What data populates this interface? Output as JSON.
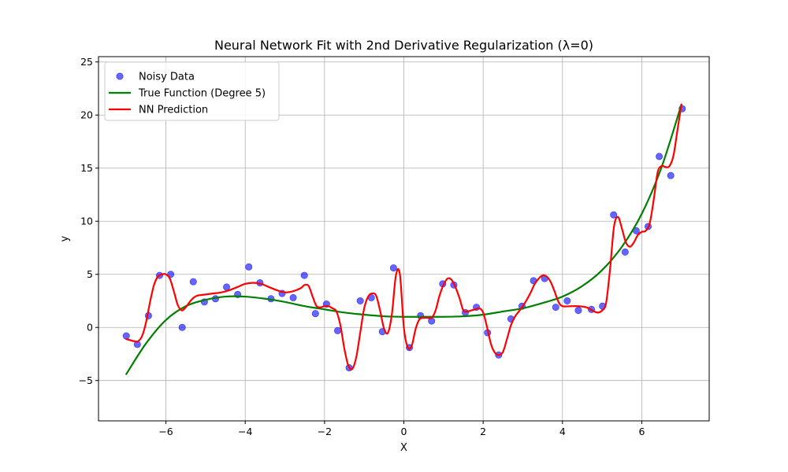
{
  "chart_data": {
    "type": "scatter",
    "title": "Neural Network Fit with 2nd Derivative Regularization (λ=0)",
    "xlabel": "X",
    "ylabel": "y",
    "xlim": [
      -7.7,
      7.7
    ],
    "ylim": [
      -8.8,
      25.5
    ],
    "xticks": [
      -6,
      -4,
      -2,
      0,
      2,
      4,
      6
    ],
    "yticks": [
      -5,
      0,
      5,
      10,
      15,
      20,
      25
    ],
    "grid": true,
    "legend_position": "top-left",
    "series": [
      {
        "name": "Noisy Data",
        "kind": "scatter",
        "color": "#0000ff",
        "x": [
          -7.0,
          -6.72,
          -6.44,
          -6.16,
          -5.88,
          -5.59,
          -5.31,
          -5.03,
          -4.75,
          -4.47,
          -4.19,
          -3.91,
          -3.63,
          -3.35,
          -3.07,
          -2.79,
          -2.51,
          -2.23,
          -1.95,
          -1.67,
          -1.38,
          -1.1,
          -0.82,
          -0.54,
          -0.26,
          0.14,
          0.42,
          0.7,
          0.98,
          1.26,
          1.55,
          1.83,
          2.11,
          2.39,
          2.7,
          2.98,
          3.27,
          3.55,
          3.83,
          4.12,
          4.4,
          4.73,
          5.01,
          5.29,
          5.58,
          5.86,
          6.16,
          6.44,
          6.73,
          7.02
        ],
        "y": [
          -0.8,
          -1.6,
          1.1,
          4.9,
          5.0,
          0.0,
          4.3,
          2.4,
          2.7,
          3.8,
          3.1,
          5.7,
          4.2,
          2.7,
          3.2,
          2.8,
          4.9,
          1.3,
          2.2,
          -0.3,
          -3.8,
          2.5,
          2.8,
          -0.4,
          5.6,
          -1.9,
          1.1,
          0.6,
          4.1,
          4.0,
          1.4,
          1.9,
          -0.5,
          -2.6,
          0.8,
          2.0,
          4.4,
          4.6,
          1.9,
          2.5,
          1.6,
          1.7,
          2.0,
          10.6,
          7.1,
          9.1,
          9.5,
          16.1,
          14.3,
          20.6
        ]
      },
      {
        "name": "True Function (Degree 5)",
        "kind": "line",
        "color": "#008000",
        "x": [
          -7.0,
          -6.5,
          -6.0,
          -5.5,
          -5.0,
          -4.5,
          -4.0,
          -3.5,
          -3.0,
          -2.5,
          -2.0,
          -1.5,
          -1.0,
          -0.5,
          0.0,
          0.5,
          1.0,
          1.5,
          2.0,
          2.5,
          3.0,
          3.5,
          4.0,
          4.5,
          5.0,
          5.5,
          6.0,
          6.5,
          7.0
        ],
        "y": [
          -4.4,
          -1.5,
          0.7,
          2.0,
          2.6,
          2.9,
          2.9,
          2.7,
          2.4,
          2.0,
          1.7,
          1.4,
          1.2,
          1.05,
          1.0,
          1.0,
          1.0,
          1.05,
          1.2,
          1.5,
          1.8,
          2.3,
          2.9,
          3.9,
          5.4,
          7.6,
          10.7,
          15.1,
          21.0
        ]
      },
      {
        "name": "NN Prediction",
        "kind": "line",
        "color": "#ff0000",
        "x": [
          -7.0,
          -6.9,
          -6.8,
          -6.7,
          -6.6,
          -6.5,
          -6.4,
          -6.3,
          -6.2,
          -6.1,
          -6.0,
          -5.9,
          -5.8,
          -5.7,
          -5.6,
          -5.5,
          -5.4,
          -5.3,
          -5.2,
          -5.0,
          -4.8,
          -4.6,
          -4.4,
          -4.2,
          -4.0,
          -3.8,
          -3.6,
          -3.4,
          -3.2,
          -3.0,
          -2.8,
          -2.6,
          -2.5,
          -2.4,
          -2.3,
          -2.2,
          -2.1,
          -2.0,
          -1.9,
          -1.8,
          -1.7,
          -1.6,
          -1.5,
          -1.4,
          -1.3,
          -1.2,
          -1.1,
          -1.0,
          -0.9,
          -0.8,
          -0.7,
          -0.6,
          -0.5,
          -0.4,
          -0.3,
          -0.2,
          -0.1,
          0.0,
          0.1,
          0.2,
          0.3,
          0.4,
          0.5,
          0.6,
          0.7,
          0.8,
          0.9,
          1.0,
          1.1,
          1.2,
          1.3,
          1.4,
          1.5,
          1.6,
          1.7,
          1.8,
          1.9,
          2.0,
          2.1,
          2.2,
          2.3,
          2.4,
          2.5,
          2.6,
          2.7,
          2.8,
          2.9,
          3.0,
          3.1,
          3.2,
          3.3,
          3.4,
          3.5,
          3.6,
          3.7,
          3.8,
          3.9,
          4.0,
          4.2,
          4.4,
          4.6,
          4.7,
          4.8,
          4.9,
          5.0,
          5.1,
          5.2,
          5.3,
          5.4,
          5.5,
          5.6,
          5.7,
          5.8,
          5.9,
          6.0,
          6.1,
          6.2,
          6.3,
          6.4,
          6.5,
          6.6,
          6.7,
          6.8,
          6.9,
          7.0
        ],
        "y": [
          -1.1,
          -1.2,
          -1.3,
          -1.3,
          -0.8,
          0.5,
          2.4,
          4.0,
          4.8,
          5.0,
          5.0,
          4.6,
          3.4,
          2.1,
          1.6,
          1.9,
          2.4,
          2.8,
          3.0,
          3.1,
          3.2,
          3.3,
          3.5,
          3.8,
          4.1,
          4.2,
          4.1,
          3.8,
          3.5,
          3.3,
          3.4,
          3.7,
          4.0,
          3.9,
          2.9,
          2.0,
          1.9,
          2.0,
          2.0,
          1.8,
          1.5,
          0.2,
          -2.0,
          -3.6,
          -3.9,
          -2.8,
          -0.5,
          1.8,
          2.9,
          3.2,
          3.0,
          1.6,
          -0.1,
          -0.5,
          1.3,
          4.9,
          5.0,
          0.0,
          -1.9,
          -1.7,
          -0.1,
          0.8,
          0.9,
          0.9,
          0.9,
          1.6,
          3.0,
          4.0,
          4.6,
          4.5,
          3.8,
          2.8,
          1.6,
          1.5,
          1.6,
          1.7,
          1.8,
          1.4,
          0.0,
          -1.6,
          -2.4,
          -2.6,
          -2.3,
          -1.1,
          0.2,
          1.0,
          1.5,
          2.0,
          2.6,
          3.3,
          4.1,
          4.6,
          4.9,
          4.8,
          4.3,
          3.4,
          2.4,
          2.0,
          2.0,
          2.0,
          1.9,
          1.7,
          1.5,
          1.4,
          1.6,
          2.3,
          5.5,
          9.5,
          10.4,
          9.3,
          8.0,
          7.6,
          8.0,
          8.7,
          9.0,
          9.1,
          9.8,
          12.0,
          14.6,
          15.2,
          15.1,
          15.2,
          16.2,
          18.6,
          21.0
        ]
      }
    ]
  }
}
